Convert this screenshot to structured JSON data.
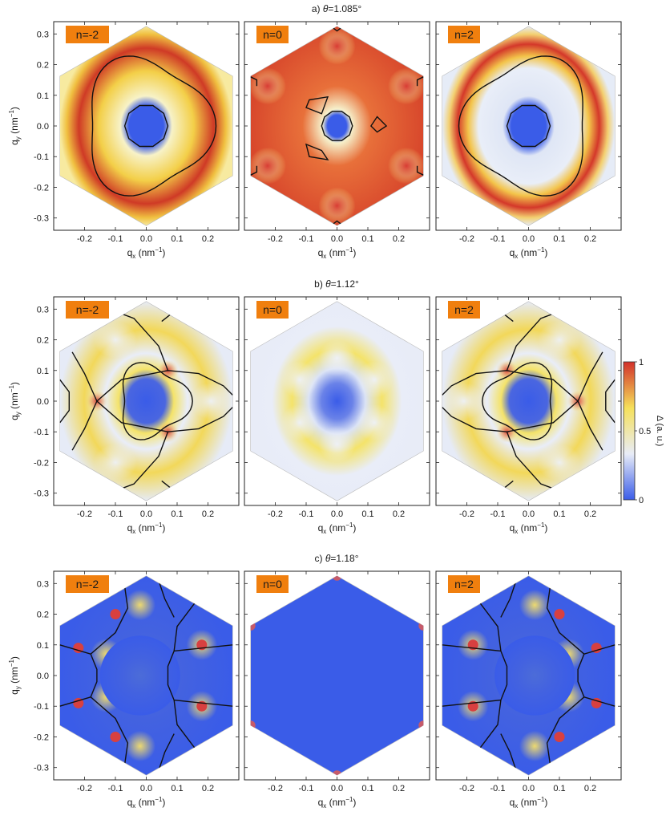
{
  "figure": {
    "rows": [
      {
        "title_prefix": "a) ",
        "theta_symbol": "θ",
        "theta_value": "=1.085°",
        "show_colorbar": false
      },
      {
        "title_prefix": "b) ",
        "theta_symbol": "θ",
        "theta_value": "=1.12°",
        "show_colorbar": true
      },
      {
        "title_prefix": "c) ",
        "theta_symbol": "θ",
        "theta_value": "=1.18°",
        "show_colorbar": false
      }
    ],
    "panels": [
      "n=-2",
      "n=0",
      "n=2"
    ],
    "axes": {
      "x_main": "q",
      "x_sub": "x",
      "x_unit_pre": " (nm",
      "x_unit_exp": "−1",
      "x_unit_post": ")",
      "y_main": "q",
      "y_sub": "y",
      "y_unit_pre": " (nm",
      "y_unit_exp": "−1",
      "y_unit_post": ")",
      "x_ticks": [
        "-0.2",
        "-0.1",
        "0.0",
        "0.1",
        "0.2"
      ],
      "y_ticks": [
        "0.3",
        "0.2",
        "0.1",
        "0.0",
        "-0.1",
        "-0.2",
        "-0.3"
      ]
    },
    "colorbar": {
      "label": "Δ (a. u.)",
      "ticks": [
        "1",
        "0.5",
        "0"
      ],
      "colors": [
        "#d2302a",
        "#f5e05a",
        "#e8ecf7",
        "#3a5ce8"
      ]
    },
    "accent": {
      "label_bg": "#f07f0e",
      "contour": "#111111"
    }
  },
  "chart_data": {
    "type": "heatmap",
    "x": {
      "label": "qx (nm-1)",
      "range": [
        -0.3,
        0.3
      ],
      "ticks": [
        -0.2,
        -0.1,
        0.0,
        0.1,
        0.2
      ]
    },
    "y": {
      "label": "qy (nm-1)",
      "range": [
        -0.34,
        0.34
      ],
      "ticks": [
        -0.3,
        -0.2,
        -0.1,
        0.0,
        0.1,
        0.2,
        0.3
      ]
    },
    "colorbar": {
      "label": "Δ (a. u.)",
      "range": [
        0,
        1
      ],
      "ticks": [
        0,
        0.5,
        1
      ]
    },
    "grid": false,
    "panels": [
      {
        "row": "a",
        "theta_deg": 1.085,
        "n": -2
      },
      {
        "row": "a",
        "theta_deg": 1.085,
        "n": 0
      },
      {
        "row": "a",
        "theta_deg": 1.085,
        "n": 2
      },
      {
        "row": "b",
        "theta_deg": 1.12,
        "n": -2
      },
      {
        "row": "b",
        "theta_deg": 1.12,
        "n": 0
      },
      {
        "row": "b",
        "theta_deg": 1.12,
        "n": 2
      },
      {
        "row": "c",
        "theta_deg": 1.18,
        "n": -2
      },
      {
        "row": "c",
        "theta_deg": 1.18,
        "n": 0
      },
      {
        "row": "c",
        "theta_deg": 1.18,
        "n": 2
      }
    ]
  }
}
